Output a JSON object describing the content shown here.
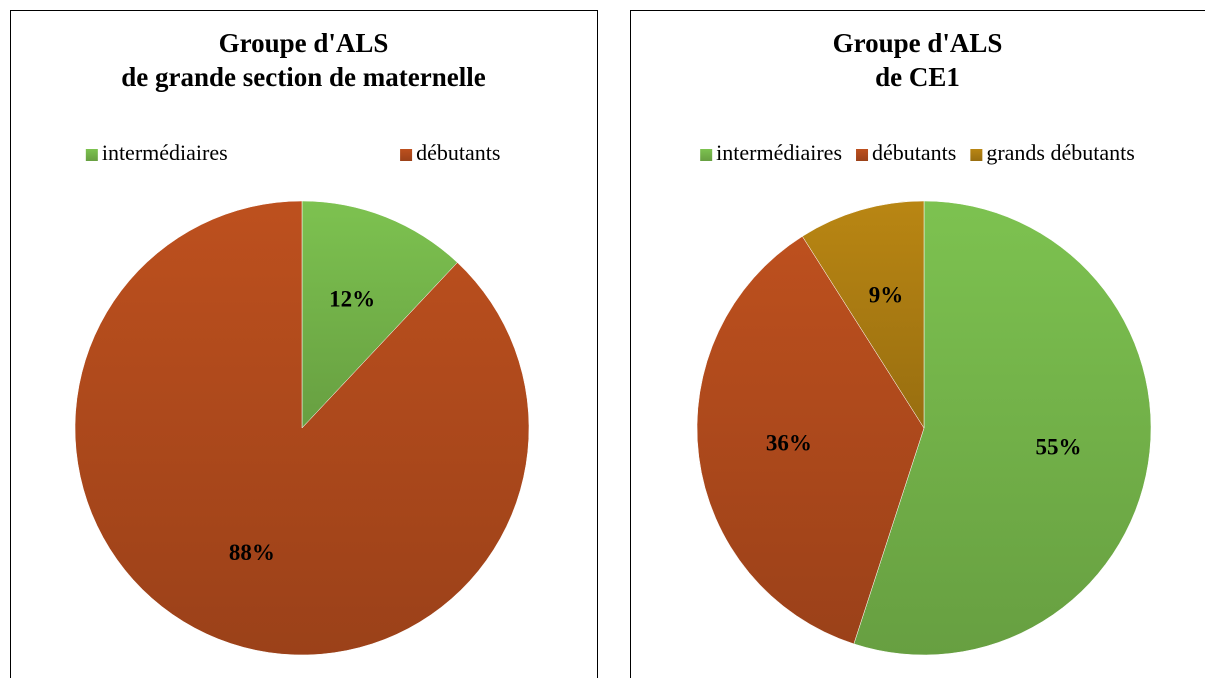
{
  "chart_data": [
    {
      "type": "pie",
      "title": [
        "Groupe d'ALS",
        "de grande section de maternelle"
      ],
      "categories": [
        "intermédiaires",
        "débutants"
      ],
      "values": [
        12,
        88
      ],
      "value_labels": [
        "12%",
        "88%"
      ],
      "colors": [
        "#70ad47",
        "#a9471b"
      ],
      "legend": "top"
    },
    {
      "type": "pie",
      "title": [
        "Groupe d'ALS",
        "de CE1"
      ],
      "categories": [
        "intermédiaires",
        "débutants",
        "grands débutants"
      ],
      "values": [
        55,
        36,
        9
      ],
      "value_labels": [
        "55%",
        "36%",
        "9%"
      ],
      "colors": [
        "#70ad47",
        "#a9471b",
        "#a57811"
      ],
      "legend": "top"
    }
  ]
}
